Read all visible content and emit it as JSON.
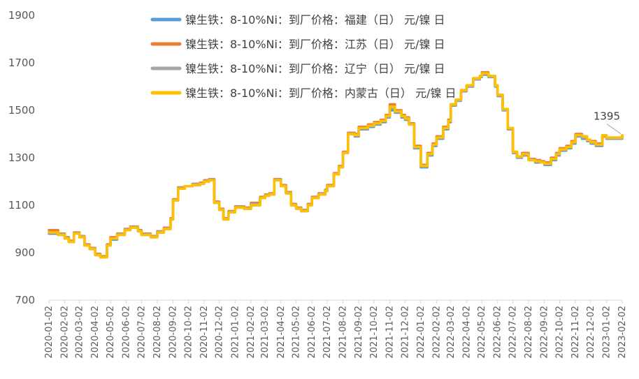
{
  "chart_data": {
    "type": "line",
    "title": "",
    "xlabel": "",
    "ylabel": "",
    "ylim": [
      700,
      1900
    ],
    "yticks": [
      700,
      900,
      1100,
      1300,
      1500,
      1700,
      1900
    ],
    "xticks": [
      "2020-01-02",
      "2020-02-02",
      "2020-03-02",
      "2020-04-02",
      "2020-05-02",
      "2020-06-02",
      "2020-07-02",
      "2020-08-02",
      "2020-09-02",
      "2020-10-02",
      "2020-11-02",
      "2020-12-02",
      "2021-01-02",
      "2021-02-02",
      "2021-03-02",
      "2021-04-02",
      "2021-05-02",
      "2021-06-02",
      "2021-07-02",
      "2021-08-02",
      "2021-09-02",
      "2021-10-02",
      "2021-11-02",
      "2021-12-02",
      "2022-01-02",
      "2022-02-02",
      "2022-03-02",
      "2022-04-02",
      "2022-05-02",
      "2022-06-02",
      "2022-07-02",
      "2022-08-02",
      "2022-09-02",
      "2022-10-02",
      "2022-11-02",
      "2022-12-02",
      "2023-01-02",
      "2023-02-02"
    ],
    "legend_position": "top-center",
    "grid": false,
    "annotation": {
      "label": "1395",
      "x": "2023-02-02",
      "y": 1395
    },
    "series": [
      {
        "name": "镍生铁：8-10%Ni：到厂价格：福建（日） 元/镍 日",
        "color": "#5B9BD5",
        "x": [
          "2020-01-02",
          "2020-01-20",
          "2020-02-02",
          "2020-02-10",
          "2020-02-20",
          "2020-03-02",
          "2020-03-12",
          "2020-03-22",
          "2020-04-02",
          "2020-04-12",
          "2020-04-25",
          "2020-05-02",
          "2020-05-15",
          "2020-05-30",
          "2020-06-10",
          "2020-06-25",
          "2020-07-02",
          "2020-07-20",
          "2020-08-02",
          "2020-08-15",
          "2020-08-28",
          "2020-09-02",
          "2020-09-12",
          "2020-09-25",
          "2020-10-10",
          "2020-10-25",
          "2020-11-02",
          "2020-11-12",
          "2020-11-22",
          "2020-12-02",
          "2020-12-10",
          "2020-12-20",
          "2021-01-02",
          "2021-01-20",
          "2021-02-02",
          "2021-02-20",
          "2021-03-02",
          "2021-03-10",
          "2021-03-20",
          "2021-04-02",
          "2021-04-12",
          "2021-04-22",
          "2021-05-02",
          "2021-05-12",
          "2021-05-25",
          "2021-06-02",
          "2021-06-15",
          "2021-06-28",
          "2021-07-02",
          "2021-07-15",
          "2021-07-25",
          "2021-08-02",
          "2021-08-12",
          "2021-08-25",
          "2021-09-02",
          "2021-09-20",
          "2021-10-02",
          "2021-10-15",
          "2021-10-25",
          "2021-11-02",
          "2021-11-12",
          "2021-11-25",
          "2021-12-02",
          "2021-12-10",
          "2021-12-20",
          "2022-01-02",
          "2022-01-15",
          "2022-01-25",
          "2022-02-02",
          "2022-02-15",
          "2022-02-25",
          "2022-03-02",
          "2022-03-12",
          "2022-03-22",
          "2022-04-02",
          "2022-04-15",
          "2022-04-28",
          "2022-05-02",
          "2022-05-15",
          "2022-05-28",
          "2022-06-02",
          "2022-06-12",
          "2022-06-22",
          "2022-07-02",
          "2022-07-10",
          "2022-07-20",
          "2022-08-02",
          "2022-08-15",
          "2022-08-25",
          "2022-09-02",
          "2022-09-15",
          "2022-09-25",
          "2022-10-02",
          "2022-10-15",
          "2022-10-25",
          "2022-11-02",
          "2022-11-15",
          "2022-11-25",
          "2022-12-02",
          "2022-12-12",
          "2022-12-25",
          "2023-01-02",
          "2023-01-15",
          "2023-01-25",
          "2023-02-02"
        ],
        "y": [
          980,
          975,
          960,
          945,
          980,
          965,
          930,
          915,
          890,
          880,
          930,
          955,
          975,
          995,
          1005,
          990,
          975,
          965,
          985,
          1000,
          1040,
          1120,
          1170,
          1180,
          1185,
          1190,
          1200,
          1205,
          1110,
          1080,
          1040,
          1070,
          1090,
          1085,
          1100,
          1130,
          1140,
          1145,
          1205,
          1180,
          1150,
          1100,
          1085,
          1075,
          1100,
          1130,
          1145,
          1160,
          1180,
          1230,
          1260,
          1320,
          1400,
          1390,
          1420,
          1430,
          1440,
          1450,
          1470,
          1500,
          1490,
          1470,
          1460,
          1440,
          1340,
          1260,
          1310,
          1350,
          1380,
          1420,
          1450,
          1520,
          1540,
          1580,
          1600,
          1630,
          1640,
          1650,
          1640,
          1600,
          1560,
          1500,
          1420,
          1320,
          1300,
          1310,
          1290,
          1280,
          1280,
          1270,
          1290,
          1310,
          1330,
          1340,
          1360,
          1390,
          1380,
          1370,
          1360,
          1350,
          1390,
          1380,
          1380,
          1380,
          1390
        ]
      },
      {
        "name": "镍生铁：8-10%Ni：到厂价格：江苏（日） 元/镍 日",
        "color": "#ED7D31",
        "x": [
          "2020-01-02",
          "2020-01-20",
          "2020-02-02",
          "2020-02-10",
          "2020-02-20",
          "2020-03-02",
          "2020-03-12",
          "2020-03-22",
          "2020-04-02",
          "2020-04-12",
          "2020-04-25",
          "2020-05-02",
          "2020-05-15",
          "2020-05-30",
          "2020-06-10",
          "2020-06-25",
          "2020-07-02",
          "2020-07-20",
          "2020-08-02",
          "2020-08-15",
          "2020-08-28",
          "2020-09-02",
          "2020-09-12",
          "2020-09-25",
          "2020-10-10",
          "2020-10-25",
          "2020-11-02",
          "2020-11-12",
          "2020-11-22",
          "2020-12-02",
          "2020-12-10",
          "2020-12-20",
          "2021-01-02",
          "2021-01-20",
          "2021-02-02",
          "2021-02-20",
          "2021-03-02",
          "2021-03-10",
          "2021-03-20",
          "2021-04-02",
          "2021-04-12",
          "2021-04-22",
          "2021-05-02",
          "2021-05-12",
          "2021-05-25",
          "2021-06-02",
          "2021-06-15",
          "2021-06-28",
          "2021-07-02",
          "2021-07-15",
          "2021-07-25",
          "2021-08-02",
          "2021-08-12",
          "2021-08-25",
          "2021-09-02",
          "2021-09-20",
          "2021-10-02",
          "2021-10-15",
          "2021-10-25",
          "2021-11-02",
          "2021-11-12",
          "2021-11-25",
          "2021-12-02",
          "2021-12-10",
          "2021-12-20",
          "2022-01-02",
          "2022-01-15",
          "2022-01-25",
          "2022-02-02",
          "2022-02-15",
          "2022-02-25",
          "2022-03-02",
          "2022-03-12",
          "2022-03-22",
          "2022-04-02",
          "2022-04-15",
          "2022-04-28",
          "2022-05-02",
          "2022-05-15",
          "2022-05-28",
          "2022-06-02",
          "2022-06-12",
          "2022-06-22",
          "2022-07-02",
          "2022-07-10",
          "2022-07-20",
          "2022-08-02",
          "2022-08-15",
          "2022-08-25",
          "2022-09-02",
          "2022-09-15",
          "2022-09-25",
          "2022-10-02",
          "2022-10-15",
          "2022-10-25",
          "2022-11-02",
          "2022-11-15",
          "2022-11-25",
          "2022-12-02",
          "2022-12-12",
          "2022-12-25",
          "2023-01-02",
          "2023-01-15",
          "2023-01-25",
          "2023-02-02"
        ],
        "y": [
          995,
          980,
          965,
          950,
          985,
          970,
          935,
          920,
          895,
          885,
          935,
          965,
          980,
          1000,
          1010,
          995,
          980,
          970,
          990,
          1005,
          1045,
          1125,
          1175,
          1180,
          1190,
          1195,
          1205,
          1210,
          1115,
          1085,
          1045,
          1075,
          1095,
          1090,
          1110,
          1135,
          1145,
          1150,
          1210,
          1185,
          1155,
          1105,
          1090,
          1080,
          1105,
          1135,
          1150,
          1165,
          1185,
          1235,
          1265,
          1325,
          1405,
          1400,
          1430,
          1440,
          1450,
          1460,
          1480,
          1525,
          1500,
          1480,
          1470,
          1445,
          1350,
          1270,
          1320,
          1360,
          1390,
          1430,
          1460,
          1525,
          1545,
          1585,
          1605,
          1635,
          1645,
          1660,
          1645,
          1605,
          1565,
          1505,
          1425,
          1325,
          1305,
          1320,
          1295,
          1290,
          1285,
          1280,
          1300,
          1320,
          1340,
          1350,
          1370,
          1400,
          1390,
          1375,
          1370,
          1360,
          1395,
          1385,
          1385,
          1385,
          1395
        ]
      },
      {
        "name": "镍生铁：8-10%Ni：到厂价格：辽宁（日） 元/镍 日",
        "color": "#A5A5A5",
        "x": [
          "2020-01-02",
          "2020-01-20",
          "2020-02-02",
          "2020-02-10",
          "2020-02-20",
          "2020-03-02",
          "2020-03-12",
          "2020-03-22",
          "2020-04-02",
          "2020-04-12",
          "2020-04-25",
          "2020-05-02",
          "2020-05-15",
          "2020-05-30",
          "2020-06-10",
          "2020-06-25",
          "2020-07-02",
          "2020-07-20",
          "2020-08-02",
          "2020-08-15",
          "2020-08-28",
          "2020-09-02",
          "2020-09-12",
          "2020-09-25",
          "2020-10-10",
          "2020-10-25",
          "2020-11-02",
          "2020-11-12",
          "2020-11-22",
          "2020-12-02",
          "2020-12-10",
          "2020-12-20",
          "2021-01-02",
          "2021-01-20",
          "2021-02-02",
          "2021-02-20",
          "2021-03-02",
          "2021-03-10",
          "2021-03-20",
          "2021-04-02",
          "2021-04-12",
          "2021-04-22",
          "2021-05-02",
          "2021-05-12",
          "2021-05-25",
          "2021-06-02",
          "2021-06-15",
          "2021-06-28",
          "2021-07-02",
          "2021-07-15",
          "2021-07-25",
          "2021-08-02",
          "2021-08-12",
          "2021-08-25",
          "2021-09-02",
          "2021-09-20",
          "2021-10-02",
          "2021-10-15",
          "2021-10-25",
          "2021-11-02",
          "2021-11-12",
          "2021-11-25",
          "2021-12-02",
          "2021-12-10",
          "2021-12-20",
          "2022-01-02",
          "2022-01-15",
          "2022-01-25",
          "2022-02-02",
          "2022-02-15",
          "2022-02-25",
          "2022-03-02",
          "2022-03-12",
          "2022-03-22",
          "2022-04-02",
          "2022-04-15",
          "2022-04-28",
          "2022-05-02",
          "2022-05-15",
          "2022-05-28",
          "2022-06-02",
          "2022-06-12",
          "2022-06-22",
          "2022-07-02",
          "2022-07-10",
          "2022-07-20",
          "2022-08-02",
          "2022-08-15",
          "2022-08-25",
          "2022-09-02",
          "2022-09-15",
          "2022-09-25",
          "2022-10-02",
          "2022-10-15",
          "2022-10-25",
          "2022-11-02",
          "2022-11-15",
          "2022-11-25",
          "2022-12-02",
          "2022-12-12",
          "2022-12-25",
          "2023-01-02",
          "2023-01-15",
          "2023-01-25",
          "2023-02-02"
        ],
        "y": [
          985,
          978,
          962,
          948,
          982,
          968,
          932,
          918,
          892,
          882,
          932,
          960,
          978,
          998,
          1008,
          992,
          978,
          968,
          988,
          1002,
          1042,
          1122,
          1172,
          1180,
          1188,
          1192,
          1202,
          1208,
          1112,
          1082,
          1042,
          1072,
          1092,
          1088,
          1105,
          1132,
          1142,
          1148,
          1208,
          1182,
          1152,
          1102,
          1088,
          1078,
          1102,
          1132,
          1148,
          1162,
          1182,
          1232,
          1262,
          1322,
          1402,
          1395,
          1425,
          1435,
          1445,
          1455,
          1475,
          1510,
          1495,
          1475,
          1465,
          1442,
          1345,
          1265,
          1315,
          1355,
          1385,
          1425,
          1455,
          1522,
          1542,
          1582,
          1602,
          1632,
          1642,
          1655,
          1642,
          1602,
          1562,
          1502,
          1422,
          1322,
          1302,
          1315,
          1292,
          1285,
          1282,
          1275,
          1295,
          1315,
          1335,
          1345,
          1365,
          1395,
          1385,
          1372,
          1365,
          1355,
          1392,
          1382,
          1382,
          1382,
          1392
        ]
      },
      {
        "name": "镍生铁：8-10%Ni：到厂价格：内蒙古（日） 元/镍 日",
        "color": "#FFC000",
        "x": [
          "2020-01-02",
          "2020-01-20",
          "2020-02-02",
          "2020-02-10",
          "2020-02-20",
          "2020-03-02",
          "2020-03-12",
          "2020-03-22",
          "2020-04-02",
          "2020-04-12",
          "2020-04-25",
          "2020-05-02",
          "2020-05-15",
          "2020-05-30",
          "2020-06-10",
          "2020-06-25",
          "2020-07-02",
          "2020-07-20",
          "2020-08-02",
          "2020-08-15",
          "2020-08-28",
          "2020-09-02",
          "2020-09-12",
          "2020-09-25",
          "2020-10-10",
          "2020-10-25",
          "2020-11-02",
          "2020-11-12",
          "2020-11-22",
          "2020-12-02",
          "2020-12-10",
          "2020-12-20",
          "2021-01-02",
          "2021-01-20",
          "2021-02-02",
          "2021-02-20",
          "2021-03-02",
          "2021-03-10",
          "2021-03-20",
          "2021-04-02",
          "2021-04-12",
          "2021-04-22",
          "2021-05-02",
          "2021-05-12",
          "2021-05-25",
          "2021-06-02",
          "2021-06-15",
          "2021-06-28",
          "2021-07-02",
          "2021-07-15",
          "2021-07-25",
          "2021-08-02",
          "2021-08-12",
          "2021-08-25",
          "2021-09-02",
          "2021-09-20",
          "2021-10-02",
          "2021-10-15",
          "2021-10-25",
          "2021-11-02",
          "2021-11-12",
          "2021-11-25",
          "2021-12-02",
          "2021-12-10",
          "2021-12-20",
          "2022-01-02",
          "2022-01-15",
          "2022-01-25",
          "2022-02-02",
          "2022-02-15",
          "2022-02-25",
          "2022-03-02",
          "2022-03-12",
          "2022-03-22",
          "2022-04-02",
          "2022-04-15",
          "2022-04-28",
          "2022-05-02",
          "2022-05-15",
          "2022-05-28",
          "2022-06-02",
          "2022-06-12",
          "2022-06-22",
          "2022-07-02",
          "2022-07-10",
          "2022-07-20",
          "2022-08-02",
          "2022-08-15",
          "2022-08-25",
          "2022-09-02",
          "2022-09-15",
          "2022-09-25",
          "2022-10-02",
          "2022-10-15",
          "2022-10-25",
          "2022-11-02",
          "2022-11-15",
          "2022-11-25",
          "2022-12-02",
          "2022-12-12",
          "2022-12-25",
          "2023-01-02",
          "2023-01-15",
          "2023-01-25",
          "2023-02-02"
        ],
        "y": [
          985,
          975,
          960,
          945,
          980,
          965,
          930,
          915,
          890,
          880,
          930,
          960,
          975,
          995,
          1005,
          990,
          975,
          965,
          985,
          1000,
          1040,
          1120,
          1170,
          1180,
          1185,
          1190,
          1200,
          1205,
          1110,
          1080,
          1040,
          1070,
          1090,
          1085,
          1100,
          1130,
          1140,
          1145,
          1205,
          1180,
          1150,
          1100,
          1085,
          1075,
          1100,
          1130,
          1145,
          1160,
          1180,
          1230,
          1260,
          1320,
          1400,
          1395,
          1425,
          1435,
          1445,
          1455,
          1475,
          1515,
          1495,
          1475,
          1465,
          1440,
          1345,
          1265,
          1315,
          1355,
          1385,
          1425,
          1455,
          1525,
          1545,
          1585,
          1605,
          1635,
          1645,
          1655,
          1645,
          1605,
          1565,
          1505,
          1425,
          1325,
          1305,
          1315,
          1290,
          1285,
          1280,
          1275,
          1295,
          1315,
          1335,
          1345,
          1365,
          1395,
          1390,
          1375,
          1365,
          1355,
          1395,
          1385,
          1385,
          1385,
          1395
        ]
      }
    ]
  }
}
